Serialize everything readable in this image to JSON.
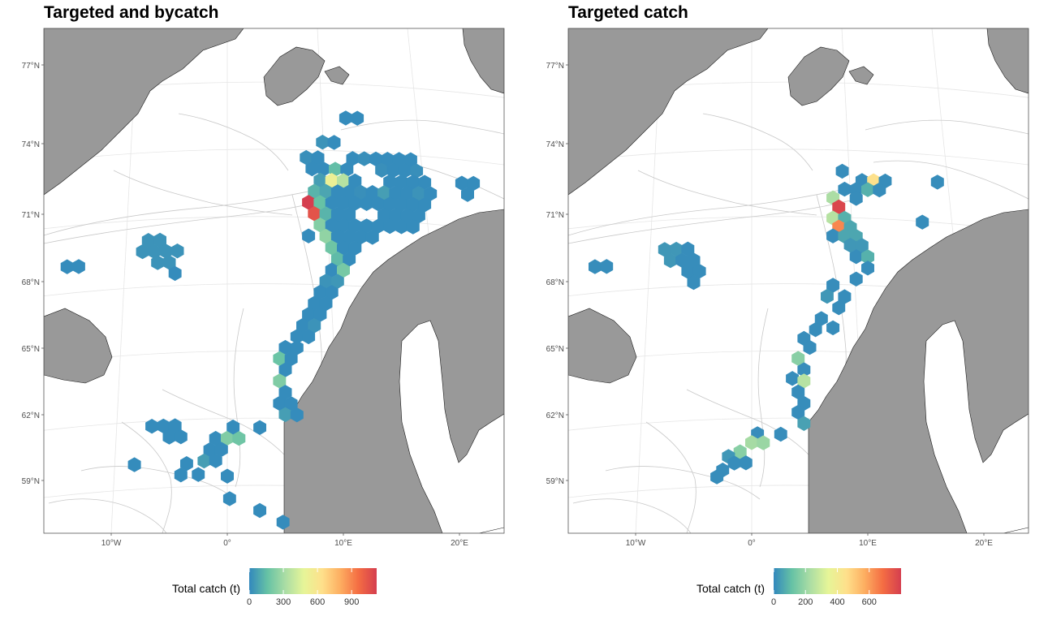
{
  "panels": [
    {
      "title": "Targeted and bycatch",
      "legend": {
        "title": "Total catch (t)",
        "max": 1120,
        "ticks": [
          0,
          300,
          600,
          900
        ]
      },
      "lat_labels": [
        "77°N",
        "74°N",
        "71°N",
        "68°N",
        "65°N",
        "62°N",
        "59°N"
      ],
      "lon_labels": [
        "10°W",
        "0°",
        "10°E",
        "20°E"
      ],
      "cells": [
        {
          "lon": 10.2,
          "lat": 75.4,
          "v": 10
        },
        {
          "lon": 11.2,
          "lat": 75.4,
          "v": 10
        },
        {
          "lon": 8.2,
          "lat": 74.3,
          "v": 30
        },
        {
          "lon": 9.2,
          "lat": 74.3,
          "v": 10
        },
        {
          "lon": 6.8,
          "lat": 73.6,
          "v": 20
        },
        {
          "lon": 7.8,
          "lat": 73.6,
          "v": 10
        },
        {
          "lon": 10.8,
          "lat": 73.6,
          "v": 10
        },
        {
          "lon": 11.8,
          "lat": 73.6,
          "v": 20
        },
        {
          "lon": 12.8,
          "lat": 73.6,
          "v": 10
        },
        {
          "lon": 13.8,
          "lat": 73.6,
          "v": 10
        },
        {
          "lon": 14.8,
          "lat": 73.6,
          "v": 10
        },
        {
          "lon": 15.8,
          "lat": 73.6,
          "v": 10
        },
        {
          "lon": 7.3,
          "lat": 73.1,
          "v": 10
        },
        {
          "lon": 8.3,
          "lat": 73.1,
          "v": 10
        },
        {
          "lon": 9.3,
          "lat": 73.1,
          "v": 150
        },
        {
          "lon": 10.3,
          "lat": 73.1,
          "v": 10
        },
        {
          "lon": 13.3,
          "lat": 73.1,
          "v": 20
        },
        {
          "lon": 14.3,
          "lat": 73.1,
          "v": 10
        },
        {
          "lon": 15.3,
          "lat": 73.1,
          "v": 10
        },
        {
          "lon": 16.3,
          "lat": 73.1,
          "v": 20
        },
        {
          "lon": 8.0,
          "lat": 72.6,
          "v": 60
        },
        {
          "lon": 9.0,
          "lat": 72.6,
          "v": 520
        },
        {
          "lon": 10.0,
          "lat": 72.6,
          "v": 350
        },
        {
          "lon": 11.0,
          "lat": 72.6,
          "v": 10
        },
        {
          "lon": 14.0,
          "lat": 72.6,
          "v": 10
        },
        {
          "lon": 15.0,
          "lat": 72.6,
          "v": 10
        },
        {
          "lon": 16.0,
          "lat": 72.6,
          "v": 10
        },
        {
          "lon": 17.0,
          "lat": 72.6,
          "v": 10
        },
        {
          "lon": 20.2,
          "lat": 72.6,
          "v": 10
        },
        {
          "lon": 21.2,
          "lat": 72.6,
          "v": 10
        },
        {
          "lon": 7.5,
          "lat": 72.1,
          "v": 120
        },
        {
          "lon": 8.5,
          "lat": 72.1,
          "v": 80
        },
        {
          "lon": 9.5,
          "lat": 72.1,
          "v": 10
        },
        {
          "lon": 10.5,
          "lat": 72.1,
          "v": 10
        },
        {
          "lon": 11.5,
          "lat": 72.1,
          "v": 20
        },
        {
          "lon": 12.5,
          "lat": 72.1,
          "v": 10
        },
        {
          "lon": 13.5,
          "lat": 72.1,
          "v": 60
        },
        {
          "lon": 14.5,
          "lat": 72.1,
          "v": 10
        },
        {
          "lon": 15.5,
          "lat": 72.1,
          "v": 10
        },
        {
          "lon": 16.5,
          "lat": 72.1,
          "v": 30
        },
        {
          "lon": 17.5,
          "lat": 72.1,
          "v": 10
        },
        {
          "lon": 20.7,
          "lat": 72.1,
          "v": 10
        },
        {
          "lon": 7.0,
          "lat": 71.6,
          "v": 1120
        },
        {
          "lon": 8.0,
          "lat": 71.6,
          "v": 160
        },
        {
          "lon": 9.0,
          "lat": 71.6,
          "v": 10
        },
        {
          "lon": 10.0,
          "lat": 71.6,
          "v": 10
        },
        {
          "lon": 11.0,
          "lat": 71.6,
          "v": 10
        },
        {
          "lon": 12.0,
          "lat": 71.6,
          "v": 10
        },
        {
          "lon": 13.0,
          "lat": 71.6,
          "v": 10
        },
        {
          "lon": 14.0,
          "lat": 71.6,
          "v": 10
        },
        {
          "lon": 15.0,
          "lat": 71.6,
          "v": 10
        },
        {
          "lon": 16.0,
          "lat": 71.6,
          "v": 10
        },
        {
          "lon": 17.0,
          "lat": 71.6,
          "v": 10
        },
        {
          "lon": 7.5,
          "lat": 71.1,
          "v": 1050
        },
        {
          "lon": 8.5,
          "lat": 71.1,
          "v": 120
        },
        {
          "lon": 9.5,
          "lat": 71.1,
          "v": 10
        },
        {
          "lon": 10.5,
          "lat": 71.1,
          "v": 10
        },
        {
          "lon": 13.5,
          "lat": 71.1,
          "v": 10
        },
        {
          "lon": 14.5,
          "lat": 71.1,
          "v": 10
        },
        {
          "lon": 15.5,
          "lat": 71.1,
          "v": 10
        },
        {
          "lon": 16.5,
          "lat": 71.1,
          "v": 10
        },
        {
          "lon": 8.0,
          "lat": 70.6,
          "v": 230
        },
        {
          "lon": 9.0,
          "lat": 70.6,
          "v": 10
        },
        {
          "lon": 10.0,
          "lat": 70.6,
          "v": 10
        },
        {
          "lon": 11.0,
          "lat": 70.6,
          "v": 10
        },
        {
          "lon": 12.0,
          "lat": 70.6,
          "v": 10
        },
        {
          "lon": 13.0,
          "lat": 70.6,
          "v": 10
        },
        {
          "lon": 14.0,
          "lat": 70.6,
          "v": 10
        },
        {
          "lon": 15.0,
          "lat": 70.6,
          "v": 10
        },
        {
          "lon": 16.0,
          "lat": 70.6,
          "v": 10
        },
        {
          "lon": 7.0,
          "lat": 70.1,
          "v": 10
        },
        {
          "lon": 8.5,
          "lat": 70.1,
          "v": 260
        },
        {
          "lon": 9.5,
          "lat": 70.1,
          "v": 10
        },
        {
          "lon": 10.5,
          "lat": 70.1,
          "v": 10
        },
        {
          "lon": 11.5,
          "lat": 70.1,
          "v": 10
        },
        {
          "lon": 12.5,
          "lat": 70.1,
          "v": 10
        },
        {
          "lon": 9.0,
          "lat": 69.6,
          "v": 180
        },
        {
          "lon": 10.0,
          "lat": 69.6,
          "v": 10
        },
        {
          "lon": 11.0,
          "lat": 69.6,
          "v": 10
        },
        {
          "lon": 9.5,
          "lat": 69.1,
          "v": 140
        },
        {
          "lon": 10.5,
          "lat": 69.1,
          "v": 10
        },
        {
          "lon": 9.0,
          "lat": 68.6,
          "v": 10
        },
        {
          "lon": 10.0,
          "lat": 68.6,
          "v": 200
        },
        {
          "lon": 8.5,
          "lat": 68.1,
          "v": 30
        },
        {
          "lon": 9.5,
          "lat": 68.1,
          "v": 40
        },
        {
          "lon": 8.0,
          "lat": 67.6,
          "v": 10
        },
        {
          "lon": 9.0,
          "lat": 67.6,
          "v": 10
        },
        {
          "lon": 7.5,
          "lat": 67.1,
          "v": 10
        },
        {
          "lon": 8.5,
          "lat": 67.1,
          "v": 10
        },
        {
          "lon": 7.0,
          "lat": 66.6,
          "v": 10
        },
        {
          "lon": 8.0,
          "lat": 66.6,
          "v": 10
        },
        {
          "lon": 6.5,
          "lat": 66.1,
          "v": 10
        },
        {
          "lon": 7.5,
          "lat": 66.1,
          "v": 30
        },
        {
          "lon": 6.0,
          "lat": 65.6,
          "v": 10
        },
        {
          "lon": 7.0,
          "lat": 65.6,
          "v": 10
        },
        {
          "lon": 5.0,
          "lat": 65.1,
          "v": 10
        },
        {
          "lon": 6.0,
          "lat": 65.1,
          "v": 10
        },
        {
          "lon": 4.5,
          "lat": 64.6,
          "v": 170
        },
        {
          "lon": 5.5,
          "lat": 64.6,
          "v": 10
        },
        {
          "lon": 5.0,
          "lat": 64.1,
          "v": 10
        },
        {
          "lon": 4.5,
          "lat": 63.6,
          "v": 220
        },
        {
          "lon": 5.0,
          "lat": 63.1,
          "v": 10
        },
        {
          "lon": 4.5,
          "lat": 62.6,
          "v": 10
        },
        {
          "lon": 5.5,
          "lat": 62.6,
          "v": 10
        },
        {
          "lon": 5.0,
          "lat": 62.1,
          "v": 60
        },
        {
          "lon": 6.0,
          "lat": 62.1,
          "v": 10
        },
        {
          "lon": -6.8,
          "lat": 69.9,
          "v": 30
        },
        {
          "lon": -5.8,
          "lat": 69.9,
          "v": 30
        },
        {
          "lon": -7.3,
          "lat": 69.4,
          "v": 30
        },
        {
          "lon": -6.3,
          "lat": 69.4,
          "v": 30
        },
        {
          "lon": -5.3,
          "lat": 69.4,
          "v": 30
        },
        {
          "lon": -4.3,
          "lat": 69.4,
          "v": 30
        },
        {
          "lon": -6.0,
          "lat": 68.9,
          "v": 30
        },
        {
          "lon": -5.0,
          "lat": 68.9,
          "v": 30
        },
        {
          "lon": -4.5,
          "lat": 68.4,
          "v": 10
        },
        {
          "lon": -13.8,
          "lat": 68.8,
          "v": 10
        },
        {
          "lon": -12.8,
          "lat": 68.8,
          "v": 10
        },
        {
          "lon": -6.5,
          "lat": 61.6,
          "v": 10
        },
        {
          "lon": -5.5,
          "lat": 61.6,
          "v": 10
        },
        {
          "lon": -4.5,
          "lat": 61.6,
          "v": 10
        },
        {
          "lon": -5.0,
          "lat": 61.1,
          "v": 10
        },
        {
          "lon": -4.0,
          "lat": 61.1,
          "v": 10
        },
        {
          "lon": -1.0,
          "lat": 61.0,
          "v": 10
        },
        {
          "lon": 0.0,
          "lat": 61.0,
          "v": 220
        },
        {
          "lon": 1.0,
          "lat": 61.0,
          "v": 180
        },
        {
          "lon": 0.5,
          "lat": 61.5,
          "v": 10
        },
        {
          "lon": 2.8,
          "lat": 61.5,
          "v": 10
        },
        {
          "lon": -1.5,
          "lat": 60.5,
          "v": 10
        },
        {
          "lon": -0.5,
          "lat": 60.5,
          "v": 10
        },
        {
          "lon": -2.0,
          "lat": 60.0,
          "v": 60
        },
        {
          "lon": -1.0,
          "lat": 60.0,
          "v": 10
        },
        {
          "lon": -3.5,
          "lat": 59.9,
          "v": 10
        },
        {
          "lon": -2.5,
          "lat": 59.4,
          "v": 10
        },
        {
          "lon": -4.0,
          "lat": 59.4,
          "v": 10
        },
        {
          "lon": -8.0,
          "lat": 59.9,
          "v": 10
        },
        {
          "lon": 0.0,
          "lat": 59.3,
          "v": 10
        },
        {
          "lon": 0.2,
          "lat": 58.3,
          "v": 10
        },
        {
          "lon": 2.8,
          "lat": 57.8,
          "v": 10
        },
        {
          "lon": 4.8,
          "lat": 57.3,
          "v": 10
        }
      ]
    },
    {
      "title": "Targeted catch",
      "legend": {
        "title": "Total catch (t)",
        "max": 800,
        "ticks": [
          0,
          200,
          400,
          600
        ]
      },
      "lat_labels": [
        "77°N",
        "74°N",
        "71°N",
        "68°N",
        "65°N",
        "62°N",
        "59°N"
      ],
      "lon_labels": [
        "10°W",
        "0°",
        "10°E",
        "20°E"
      ],
      "cells": [
        {
          "lon": 7.8,
          "lat": 73.0,
          "v": 10
        },
        {
          "lon": 9.5,
          "lat": 72.6,
          "v": 10
        },
        {
          "lon": 10.5,
          "lat": 72.6,
          "v": 450
        },
        {
          "lon": 11.5,
          "lat": 72.6,
          "v": 10
        },
        {
          "lon": 8.0,
          "lat": 72.2,
          "v": 10
        },
        {
          "lon": 9.0,
          "lat": 72.2,
          "v": 10
        },
        {
          "lon": 10.0,
          "lat": 72.2,
          "v": 80
        },
        {
          "lon": 11.0,
          "lat": 72.2,
          "v": 10
        },
        {
          "lon": 7.0,
          "lat": 71.8,
          "v": 230
        },
        {
          "lon": 9.0,
          "lat": 71.8,
          "v": 10
        },
        {
          "lon": 7.5,
          "lat": 71.4,
          "v": 780
        },
        {
          "lon": 7.0,
          "lat": 70.9,
          "v": 250
        },
        {
          "lon": 8.0,
          "lat": 70.9,
          "v": 80
        },
        {
          "lon": 7.5,
          "lat": 70.5,
          "v": 640
        },
        {
          "lon": 8.5,
          "lat": 70.5,
          "v": 60
        },
        {
          "lon": 7.0,
          "lat": 70.1,
          "v": 10
        },
        {
          "lon": 8.0,
          "lat": 70.1,
          "v": 60
        },
        {
          "lon": 9.0,
          "lat": 70.1,
          "v": 60
        },
        {
          "lon": 8.5,
          "lat": 69.7,
          "v": 30
        },
        {
          "lon": 9.5,
          "lat": 69.7,
          "v": 30
        },
        {
          "lon": 9.0,
          "lat": 69.2,
          "v": 10
        },
        {
          "lon": 10.0,
          "lat": 69.2,
          "v": 80
        },
        {
          "lon": 10.0,
          "lat": 68.7,
          "v": 10
        },
        {
          "lon": 9.0,
          "lat": 68.2,
          "v": 10
        },
        {
          "lon": 7.0,
          "lat": 67.9,
          "v": 10
        },
        {
          "lon": 6.5,
          "lat": 67.4,
          "v": 30
        },
        {
          "lon": 8.0,
          "lat": 67.4,
          "v": 10
        },
        {
          "lon": 7.5,
          "lat": 66.9,
          "v": 10
        },
        {
          "lon": 6.0,
          "lat": 66.4,
          "v": 10
        },
        {
          "lon": 7.0,
          "lat": 66.0,
          "v": 10
        },
        {
          "lon": 5.5,
          "lat": 65.9,
          "v": 10
        },
        {
          "lon": 4.5,
          "lat": 65.5,
          "v": 10
        },
        {
          "lon": 5.0,
          "lat": 65.1,
          "v": 10
        },
        {
          "lon": 4.0,
          "lat": 64.6,
          "v": 170
        },
        {
          "lon": 4.5,
          "lat": 64.1,
          "v": 10
        },
        {
          "lon": 3.5,
          "lat": 63.7,
          "v": 10
        },
        {
          "lon": 4.5,
          "lat": 63.6,
          "v": 250
        },
        {
          "lon": 4.0,
          "lat": 63.1,
          "v": 10
        },
        {
          "lon": 4.5,
          "lat": 62.6,
          "v": 10
        },
        {
          "lon": 4.0,
          "lat": 62.2,
          "v": 10
        },
        {
          "lon": 4.5,
          "lat": 61.7,
          "v": 50
        },
        {
          "lon": 2.5,
          "lat": 61.2,
          "v": 10
        },
        {
          "lon": 0.5,
          "lat": 61.2,
          "v": 10
        },
        {
          "lon": 0.0,
          "lat": 60.8,
          "v": 220
        },
        {
          "lon": 1.0,
          "lat": 60.8,
          "v": 200
        },
        {
          "lon": -1.0,
          "lat": 60.4,
          "v": 170
        },
        {
          "lon": -2.0,
          "lat": 60.2,
          "v": 30
        },
        {
          "lon": -1.5,
          "lat": 59.9,
          "v": 10
        },
        {
          "lon": -0.5,
          "lat": 59.9,
          "v": 10
        },
        {
          "lon": -2.5,
          "lat": 59.6,
          "v": 10
        },
        {
          "lon": -3.0,
          "lat": 59.3,
          "v": 10
        },
        {
          "lon": -7.5,
          "lat": 69.5,
          "v": 30
        },
        {
          "lon": -6.5,
          "lat": 69.5,
          "v": 30
        },
        {
          "lon": -5.5,
          "lat": 69.5,
          "v": 10
        },
        {
          "lon": -7.0,
          "lat": 69.0,
          "v": 30
        },
        {
          "lon": -6.0,
          "lat": 69.0,
          "v": 10
        },
        {
          "lon": -5.0,
          "lat": 69.0,
          "v": 10
        },
        {
          "lon": -5.5,
          "lat": 68.5,
          "v": 10
        },
        {
          "lon": -4.5,
          "lat": 68.5,
          "v": 10
        },
        {
          "lon": -5.0,
          "lat": 68.0,
          "v": 10
        },
        {
          "lon": -13.5,
          "lat": 68.8,
          "v": 10
        },
        {
          "lon": -12.5,
          "lat": 68.8,
          "v": 10
        },
        {
          "lon": 16.0,
          "lat": 72.6,
          "v": 10
        },
        {
          "lon": 14.7,
          "lat": 70.8,
          "v": 10
        }
      ]
    }
  ]
}
